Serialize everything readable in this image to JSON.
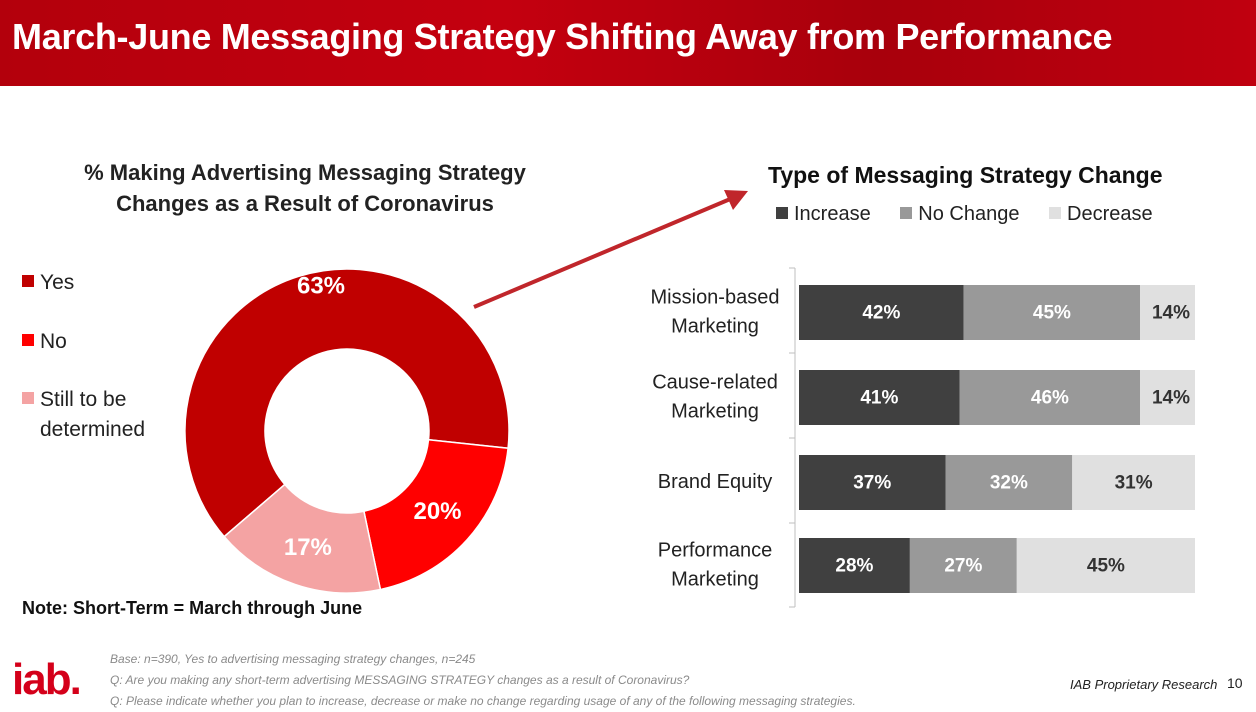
{
  "slide": {
    "title": "March-June Messaging Strategy Shifting Away from Performance",
    "note": "Note: Short-Term = March through June",
    "footnotes": [
      "Base: n=390, Yes to advertising messaging strategy changes, n=245",
      "Q: Are you making any short-term advertising MESSAGING STRATEGY changes as a result of Coronavirus?",
      "Q: Please indicate whether you plan to increase, decrease or make no change regarding usage of any of the following messaging strategies."
    ],
    "logo_text": "iab.",
    "proprietary": "IAB Proprietary Research",
    "page_number": "10"
  },
  "chart_data": [
    {
      "type": "pie",
      "donut": true,
      "title": "% Making Advertising Messaging Strategy Changes as a Result of Coronavirus",
      "title_lines": [
        "% Making Advertising Messaging Strategy",
        "Changes as a Result of Coronavirus"
      ],
      "legend_position": "left",
      "slices": [
        {
          "label": "Yes",
          "value": 63,
          "display": "63%",
          "color": "#c00000"
        },
        {
          "label": "No",
          "value": 20,
          "display": "20%",
          "color": "#ff0000"
        },
        {
          "label": "Still to be determined",
          "value": 17,
          "display": "17%",
          "color": "#f4a3a3"
        }
      ],
      "legend_labels": [
        [
          "Yes"
        ],
        [
          "No"
        ],
        [
          "Still to be",
          "determined"
        ]
      ]
    },
    {
      "type": "bar",
      "orientation": "horizontal",
      "stacked": true,
      "title": "Type of Messaging Strategy Change",
      "legend_position": "top",
      "categories": [
        "Mission-based Marketing",
        "Cause-related Marketing",
        "Brand Equity",
        "Performance Marketing"
      ],
      "category_lines": [
        [
          "Mission-based",
          "Marketing"
        ],
        [
          "Cause-related",
          "Marketing"
        ],
        [
          "Brand Equity"
        ],
        [
          "Performance",
          "Marketing"
        ]
      ],
      "series": [
        {
          "name": "Increase",
          "color": "#404040",
          "label_color": "#ffffff",
          "values": [
            42,
            41,
            37,
            28
          ],
          "labels": [
            "42%",
            "41%",
            "37%",
            "28%"
          ]
        },
        {
          "name": "No Change",
          "color": "#999999",
          "label_color": "#ffffff",
          "values": [
            45,
            46,
            32,
            27
          ],
          "labels": [
            "45%",
            "46%",
            "32%",
            "27%"
          ]
        },
        {
          "name": "Decrease",
          "color": "#e0e0e0",
          "label_color": "#333333",
          "values": [
            14,
            14,
            31,
            45
          ],
          "labels": [
            "14%",
            "14%",
            "31%",
            "45%"
          ]
        }
      ]
    }
  ]
}
